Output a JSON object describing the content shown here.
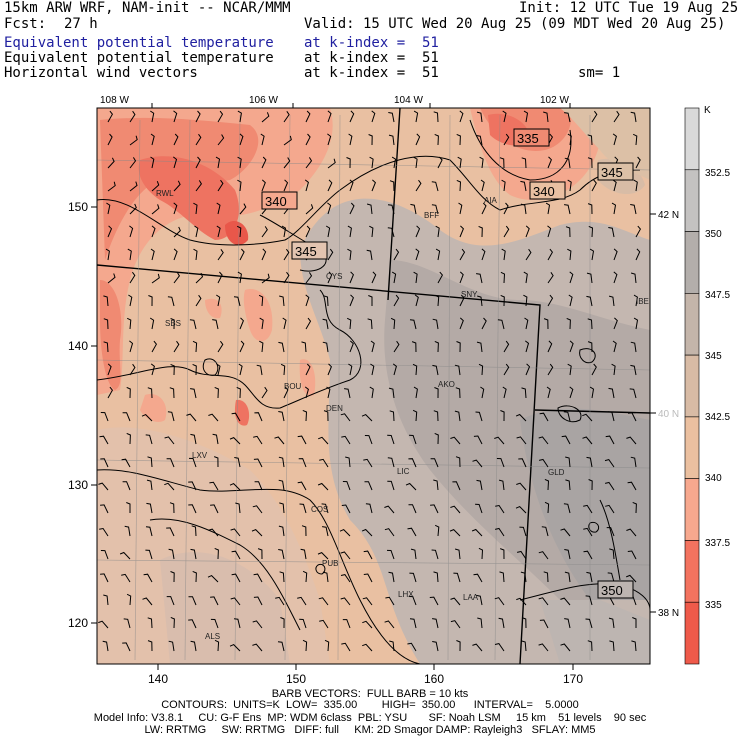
{
  "header": {
    "model": "15km ARW WRF, NAM-init -- NCAR/MMM",
    "init": "Init: 12 UTC Tue 19 Aug 25",
    "fcst_label": "Fcst:",
    "fcst_value": "27 h",
    "valid": "Valid: 15 UTC Wed 20 Aug 25 (09 MDT Wed 20 Aug 25)",
    "fields": [
      {
        "name": "Equivalent potential temperature",
        "level": "at k-index =  51",
        "color": "#2020a0"
      },
      {
        "name": "Equivalent potential temperature",
        "level": "at k-index =  51",
        "color": "#000000"
      },
      {
        "name": "Horizontal wind vectors",
        "level": "at k-index =  51",
        "color": "#000000"
      }
    ],
    "smoothing": "sm= 1"
  },
  "map": {
    "lon_labels": [
      "108 W",
      "106 W",
      "104 W",
      "102 W"
    ],
    "lat_labels": [
      "42 N",
      "40 N",
      "38 N"
    ],
    "grid_x_labels": [
      "140",
      "150",
      "160",
      "170"
    ],
    "grid_y_labels": [
      "150",
      "140",
      "130",
      "120"
    ],
    "cities": [
      "RWL",
      "BFF",
      "AIA",
      "CYS",
      "SNY",
      "IBE",
      "SBS",
      "BOU",
      "AKO",
      "DEN",
      "LIC",
      "LXV",
      "GLD",
      "COS",
      "PUB",
      "LHX",
      "LAA",
      "ALS"
    ],
    "contour_labels": [
      "335",
      "345",
      "340",
      "340",
      "345",
      "350"
    ]
  },
  "colorbar": {
    "unit": "K",
    "labels": [
      "352.5",
      "350",
      "347.5",
      "345",
      "342.5",
      "340",
      "337.5",
      "335"
    ],
    "colors": [
      "#d9d9d9",
      "#c4c2c1",
      "#b3aeab",
      "#c4b5aa",
      "#d8bba5",
      "#ebc0a0",
      "#f7a88e",
      "#f3735f",
      "#ef5a4a"
    ]
  },
  "footer": {
    "barb": "BARB VECTORS:  FULL BARB = 10 kts",
    "contours": "CONTOURS:  UNITS=K  LOW=  335.00        HIGH=  350.00      INTERVAL=    5.0000",
    "model_info_1": "Model Info: V3.8.1     CU: G-F Ens  MP: WDM 6class  PBL: YSU       SF: Noah LSM     15 km    51 levels    90 sec",
    "model_info_2": "LW: RRTMG     SW: RRTMG   DIFF: full     KM: 2D Smagor DAMP: Rayleigh3   SFLAY: MM5"
  }
}
